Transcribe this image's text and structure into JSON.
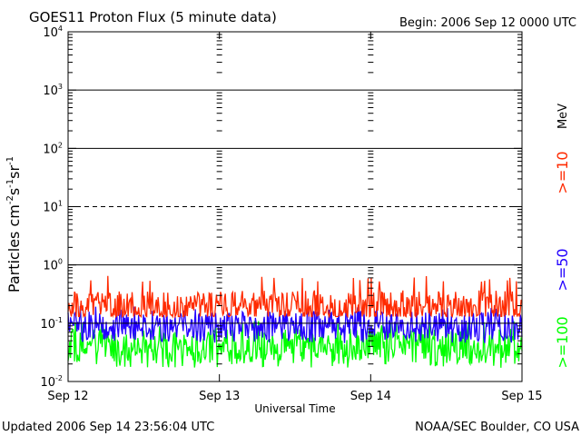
{
  "chart_data": {
    "type": "line",
    "title": "GOES11 Proton Flux (5 minute data)",
    "subtitle": "Begin: 2006 Sep 12 0000 UTC",
    "xlabel": "Universal Time",
    "ylabel": {
      "base": "Particles cm",
      "parts": [
        {
          "sup": "-2"
        },
        {
          "text": "s"
        },
        {
          "sup": "-1"
        },
        {
          "text": "sr"
        },
        {
          "sup": "-1"
        }
      ]
    },
    "x_ticks": [
      "Sep 12",
      "Sep 13",
      "Sep 14",
      "Sep 15"
    ],
    "y_scale": "log",
    "ylim": [
      0.01,
      10000
    ],
    "y_ticks": [
      {
        "base": "10",
        "exp": "-2"
      },
      {
        "base": "10",
        "exp": "-1"
      },
      {
        "base": "10",
        "exp": "0"
      },
      {
        "base": "10",
        "exp": "1"
      },
      {
        "base": "10",
        "exp": "2"
      },
      {
        "base": "10",
        "exp": "3"
      },
      {
        "base": "10",
        "exp": "4"
      }
    ],
    "reference_lines": [
      {
        "y": 0.1,
        "style": "solid"
      },
      {
        "y": 1,
        "style": "solid"
      },
      {
        "y": 10,
        "style": "dashed"
      },
      {
        "y": 100,
        "style": "solid"
      },
      {
        "y": 1000,
        "style": "solid"
      }
    ],
    "energy_unit": "MeV",
    "series": [
      {
        "name": ">=10",
        "color": "#ff2a00",
        "baseline": 0.2,
        "min": 0.13,
        "max": 0.65
      },
      {
        "name": ">=50",
        "color": "#2200ff",
        "baseline": 0.09,
        "min": 0.045,
        "max": 0.2
      },
      {
        "name": ">=100",
        "color": "#00ff00",
        "baseline": 0.04,
        "min": 0.017,
        "max": 0.11
      }
    ]
  },
  "footer": {
    "updated": "Updated 2006 Sep 14 23:56:04 UTC",
    "credit": "NOAA/SEC Boulder, CO USA"
  }
}
